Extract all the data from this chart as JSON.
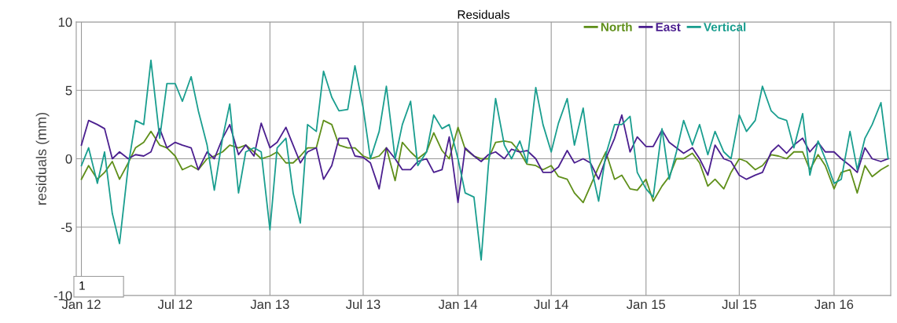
{
  "chart_data": {
    "type": "line",
    "title": "Residuals",
    "ylabel": "residuals (mm)",
    "x": [
      "2012-01-01",
      "2012-01-15",
      "2012-02-01",
      "2012-02-15",
      "2012-03-01",
      "2012-03-15",
      "2012-04-01",
      "2012-04-15",
      "2012-05-01",
      "2012-05-15",
      "2012-06-01",
      "2012-06-15",
      "2012-07-01",
      "2012-07-15",
      "2012-08-01",
      "2012-08-15",
      "2012-09-01",
      "2012-09-15",
      "2012-10-01",
      "2012-10-15",
      "2012-11-01",
      "2012-11-15",
      "2012-12-01",
      "2012-12-15",
      "2013-01-01",
      "2013-01-15",
      "2013-02-01",
      "2013-02-15",
      "2013-03-01",
      "2013-03-15",
      "2013-04-01",
      "2013-04-15",
      "2013-05-01",
      "2013-05-15",
      "2013-06-01",
      "2013-06-15",
      "2013-07-01",
      "2013-07-15",
      "2013-08-01",
      "2013-08-15",
      "2013-09-01",
      "2013-09-15",
      "2013-10-01",
      "2013-10-15",
      "2013-11-01",
      "2013-11-15",
      "2013-12-01",
      "2013-12-15",
      "2014-01-01",
      "2014-01-15",
      "2014-02-01",
      "2014-02-15",
      "2014-03-01",
      "2014-03-15",
      "2014-04-01",
      "2014-04-15",
      "2014-05-01",
      "2014-05-15",
      "2014-06-01",
      "2014-06-15",
      "2014-07-01",
      "2014-07-15",
      "2014-08-01",
      "2014-08-15",
      "2014-09-01",
      "2014-09-15",
      "2014-10-01",
      "2014-10-15",
      "2014-11-01",
      "2014-11-15",
      "2014-12-01",
      "2014-12-15",
      "2015-01-01",
      "2015-01-15",
      "2015-02-01",
      "2015-02-15",
      "2015-03-01",
      "2015-03-15",
      "2015-04-01",
      "2015-04-15",
      "2015-05-01",
      "2015-05-15",
      "2015-06-01",
      "2015-06-15",
      "2015-07-01",
      "2015-07-15",
      "2015-08-01",
      "2015-08-15",
      "2015-09-01",
      "2015-09-15",
      "2015-10-01",
      "2015-10-15",
      "2015-11-01",
      "2015-11-15",
      "2015-12-01",
      "2015-12-15",
      "2016-01-01",
      "2016-01-15",
      "2016-02-01",
      "2016-02-15",
      "2016-03-01",
      "2016-03-15",
      "2016-04-01",
      "2016-04-15"
    ],
    "series": [
      {
        "name": "North",
        "color": "#5f8f1a",
        "values": [
          -1.5,
          -0.5,
          -1.5,
          -1,
          -0.2,
          -1.5,
          -0.3,
          0.8,
          1.2,
          2,
          1,
          0.8,
          0.2,
          -0.8,
          -0.5,
          -0.8,
          0,
          0.2,
          0.5,
          1,
          0.8,
          1,
          0.5,
          0,
          0.2,
          0.5,
          -0.3,
          -0.3,
          0.2,
          0.8,
          0.8,
          2.8,
          2.5,
          1,
          0.8,
          0.8,
          0.2,
          0,
          0.2,
          0.8,
          -1.6,
          1.2,
          0.5,
          0,
          0.5,
          1.9,
          0.6,
          0,
          2.3,
          0.7,
          0.2,
          0,
          0,
          1.2,
          1.3,
          1.2,
          0.5,
          -0.4,
          -0.5,
          -0.8,
          -0.5,
          -1.3,
          -1.5,
          -2.5,
          -3.2,
          -2,
          -0.6,
          0.5,
          -1.5,
          -1.2,
          -2.2,
          -2.3,
          -1.5,
          -3.1,
          -2,
          -1.3,
          0,
          0,
          0.4,
          -0.3,
          -2,
          -1.5,
          -2.2,
          -1,
          0,
          -0.2,
          -0.8,
          -0.5,
          0.3,
          0.2,
          0,
          0.5,
          0.5,
          -0.8,
          0.3,
          -0.5,
          -2.2,
          -1,
          -0.8,
          -2.5,
          -0.5,
          -1.3,
          -0.8,
          -0.5
        ]
      },
      {
        "name": "East",
        "color": "#4b1f8f",
        "values": [
          1,
          2.8,
          2.5,
          2.2,
          0,
          0.5,
          0,
          0.3,
          0.2,
          0.5,
          2.2,
          0.8,
          1.2,
          1,
          0.8,
          -0.8,
          0.5,
          0,
          1.5,
          2.5,
          0.3,
          1,
          0.2,
          2.6,
          0.8,
          1.2,
          2.3,
          1,
          -0.3,
          0.5,
          0.8,
          -1.5,
          -0.5,
          1.5,
          1.5,
          0.2,
          0.1,
          -0.3,
          -2.2,
          0.8,
          0,
          -0.8,
          -0.8,
          -0.2,
          0,
          -1,
          -0.8,
          1.6,
          -3.2,
          0.8,
          0.2,
          -0.2,
          0.3,
          0.5,
          0,
          0.7,
          0.5,
          0.6,
          0,
          -1,
          -1,
          -0.6,
          0.6,
          -0.3,
          0,
          -0.3,
          -1.5,
          0,
          1.5,
          3.2,
          0.5,
          1.6,
          0.9,
          0.9,
          2.1,
          1.2,
          0.8,
          0.4,
          0.8,
          0,
          -1.2,
          1,
          0,
          -0.2,
          -1.2,
          -1.5,
          -1.2,
          -1,
          0.5,
          1,
          0.4,
          1,
          1.5,
          0.5,
          1.2,
          0.5,
          0.5,
          0,
          -0.5,
          -1,
          0.8,
          0,
          -0.2,
          0
        ]
      },
      {
        "name": "Vertical",
        "color": "#1a9e8f",
        "values": [
          -0.5,
          0.8,
          -1.8,
          0.5,
          -4,
          -6.2,
          -0.5,
          2.8,
          2.5,
          7.2,
          1.5,
          5.5,
          5.5,
          4.2,
          6.0,
          3.5,
          1,
          -2.3,
          1.5,
          4,
          -2.5,
          0.5,
          0.8,
          0.5,
          -5.2,
          0.8,
          1.5,
          -2.5,
          -4.7,
          2.5,
          2,
          6.4,
          4.5,
          3.5,
          3.6,
          6.8,
          3.7,
          0,
          2,
          5.3,
          0,
          2.5,
          4.2,
          -0.5,
          0.5,
          3.2,
          2.2,
          2.5,
          0,
          -2.5,
          -2.8,
          -7.4,
          -0.5,
          4.4,
          1,
          0,
          1.3,
          -0.3,
          5.2,
          2.5,
          0.5,
          2.6,
          4.4,
          1,
          3.7,
          -0.3,
          -3.1,
          0.3,
          2.5,
          2.5,
          3.1,
          -1,
          -2.2,
          -2.8,
          2.2,
          -1.5,
          0.5,
          2.8,
          1,
          2.5,
          0.3,
          2,
          0.5,
          0,
          3.2,
          2,
          2.8,
          5.3,
          3.5,
          3,
          2.8,
          0.8,
          3.3,
          -1.2,
          1.3,
          0,
          -1.8,
          -1.5,
          2,
          -0.8,
          1.5,
          2.5,
          4.1,
          0
        ]
      }
    ],
    "xlim": [
      "2011-12-22",
      "2016-04-20"
    ],
    "xticks": [
      {
        "value": "2012-01-01",
        "label": "Jan 12"
      },
      {
        "value": "2012-07-01",
        "label": "Jul 12"
      },
      {
        "value": "2013-01-01",
        "label": "Jan 13"
      },
      {
        "value": "2013-07-01",
        "label": "Jul 13"
      },
      {
        "value": "2014-01-01",
        "label": "Jan 14"
      },
      {
        "value": "2014-07-01",
        "label": "Jul 14"
      },
      {
        "value": "2015-01-01",
        "label": "Jan 15"
      },
      {
        "value": "2015-07-01",
        "label": "Jul 15"
      },
      {
        "value": "2016-01-01",
        "label": "Jan 16"
      }
    ],
    "ylim": [
      -10,
      10
    ],
    "yticks": [
      -10,
      -5,
      0,
      5,
      10
    ],
    "grid": true,
    "legend": "top right",
    "marker": "none",
    "line_style": "solid",
    "annotations": [
      "1"
    ]
  }
}
